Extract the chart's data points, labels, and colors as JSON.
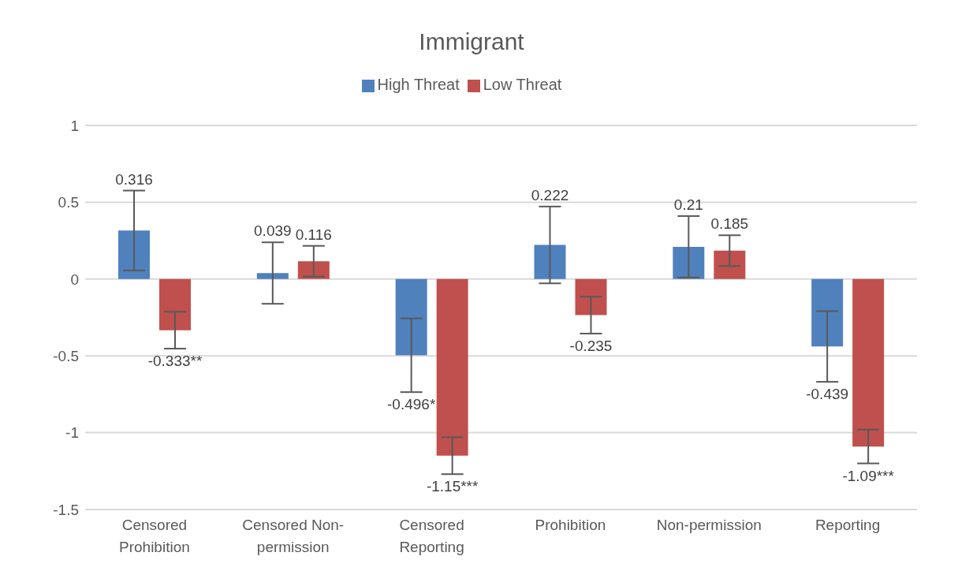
{
  "chart_data": {
    "type": "bar",
    "title": "Immigrant",
    "categories": [
      "Censored Prohibition",
      "Censored Non-permission",
      "Censored Reporting",
      "Prohibition",
      "Non-permission",
      "Reporting"
    ],
    "series": [
      {
        "name": "High Threat",
        "color": "#4f81bd",
        "values": [
          0.316,
          0.039,
          -0.496,
          0.222,
          0.21,
          -0.439
        ],
        "errors": [
          0.26,
          0.2,
          0.24,
          0.25,
          0.2,
          0.23
        ],
        "value_labels": [
          "0.316",
          "0.039",
          "-0.496*",
          "0.222",
          "0.21",
          "-0.439"
        ]
      },
      {
        "name": "Low Threat",
        "color": "#c0504d",
        "values": [
          -0.333,
          0.116,
          -1.15,
          -0.235,
          0.185,
          -1.09
        ],
        "errors": [
          0.12,
          0.1,
          0.12,
          0.12,
          0.1,
          0.11
        ],
        "value_labels": [
          "-0.333**",
          "0.116",
          "-1.15***",
          "-0.235",
          "0.185",
          "-1.09***"
        ]
      }
    ],
    "ylim": [
      -1.5,
      1
    ],
    "yticks": [
      -1.5,
      -1,
      -0.5,
      0,
      0.5,
      1
    ],
    "grid": "y",
    "legend": "top"
  }
}
